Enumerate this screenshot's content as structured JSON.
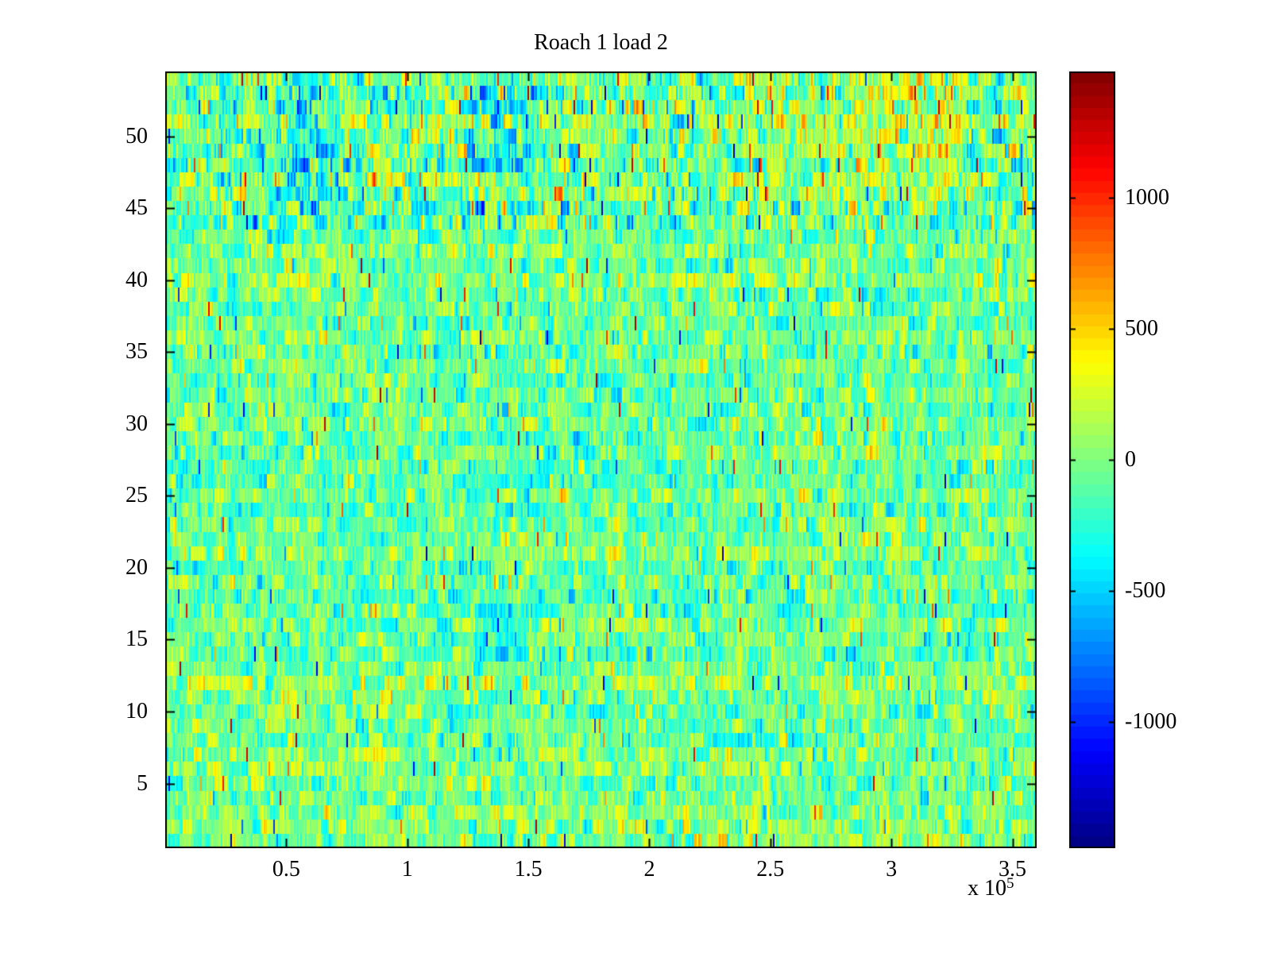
{
  "figure": {
    "background": "#ffffff",
    "text_color": "#000000",
    "axis_color": "#000000"
  },
  "chart_data": {
    "type": "heatmap",
    "title": "Roach 1 load 2",
    "xlabel": "",
    "ylabel": "",
    "colormap": "jet",
    "grid": false,
    "x_range": [
      0,
      360000
    ],
    "x_tick_values": [
      50000,
      100000,
      150000,
      200000,
      250000,
      300000,
      350000
    ],
    "x_tick_labels": [
      "0.5",
      "1",
      "1.5",
      "2",
      "2.5",
      "3",
      "3.5"
    ],
    "x_exponent_label": {
      "prefix": "x 10",
      "exponent": "5"
    },
    "y_range": [
      0.5,
      54.5
    ],
    "rows": 54,
    "cols": 549,
    "y_tick_values": [
      5,
      10,
      15,
      20,
      25,
      30,
      35,
      40,
      45,
      50
    ],
    "y_tick_labels": [
      "5",
      "10",
      "15",
      "20",
      "25",
      "30",
      "35",
      "40",
      "45",
      "50"
    ],
    "clim": [
      -1480,
      1480
    ],
    "colorbar_tick_values": [
      -1000,
      -500,
      0,
      500,
      1000
    ],
    "colorbar_tick_labels": [
      "-1000",
      "-500",
      "0",
      "500",
      "1000"
    ],
    "noise_model": {
      "seed": 20240217,
      "mean": -40,
      "block_std": 170,
      "cell_jitter": 120,
      "block_len_max": 6,
      "spike_prob": 0.01,
      "spike_min": 500,
      "spike_max": 1400,
      "busy_rows_from": 44,
      "busy_std_scale": 1.4,
      "busy_spike_scale": 2.2,
      "patches": [
        {
          "x": [
            46000,
            72000
          ],
          "rows": [
            46,
            54
          ],
          "bias": -200
        },
        {
          "x": [
            54000,
            64000
          ],
          "rows": [
            49,
            53
          ],
          "bias": -180
        },
        {
          "x": [
            125000,
            152000
          ],
          "rows": [
            48,
            53
          ],
          "bias": -220
        },
        {
          "x": [
            128000,
            150000
          ],
          "rows": [
            14,
            17
          ],
          "bias": -300
        },
        {
          "x": [
            240000,
            330000
          ],
          "rows": [
            45,
            54
          ],
          "bias": 140
        },
        {
          "x": [
            250000,
            300000
          ],
          "rows": [
            25,
            33
          ],
          "bias": 90
        },
        {
          "x": [
            8000,
            90000
          ],
          "rows": [
            3,
            12
          ],
          "bias": 70
        }
      ]
    }
  }
}
